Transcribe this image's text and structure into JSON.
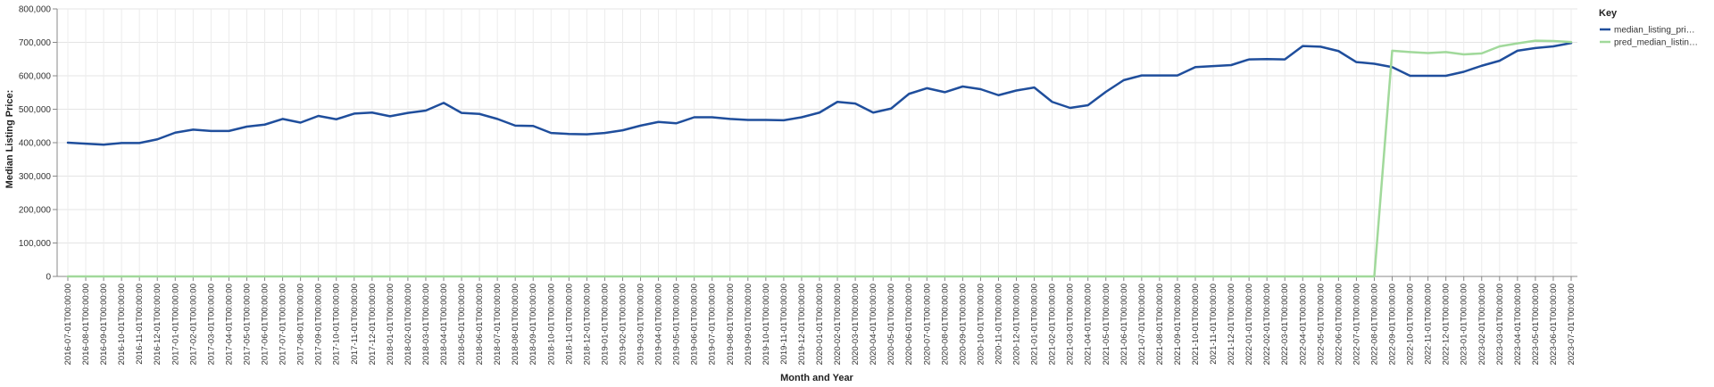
{
  "chart_data": {
    "type": "line",
    "xlabel": "Month and Year",
    "ylabel": "Median Listing Price:",
    "ylim": [
      0,
      800000
    ],
    "yticks": [
      "0",
      "100,000",
      "200,000",
      "300,000",
      "400,000",
      "500,000",
      "600,000",
      "700,000",
      "800,000"
    ],
    "grid": true,
    "legend_position": "top-right",
    "legend_title": "Key",
    "x": [
      "2016-07-01T00:00:00",
      "2016-08-01T00:00:00",
      "2016-09-01T00:00:00",
      "2016-10-01T00:00:00",
      "2016-11-01T00:00:00",
      "2016-12-01T00:00:00",
      "2017-01-01T00:00:00",
      "2017-02-01T00:00:00",
      "2017-03-01T00:00:00",
      "2017-04-01T00:00:00",
      "2017-05-01T00:00:00",
      "2017-06-01T00:00:00",
      "2017-07-01T00:00:00",
      "2017-08-01T00:00:00",
      "2017-09-01T00:00:00",
      "2017-10-01T00:00:00",
      "2017-11-01T00:00:00",
      "2017-12-01T00:00:00",
      "2018-01-01T00:00:00",
      "2018-02-01T00:00:00",
      "2018-03-01T00:00:00",
      "2018-04-01T00:00:00",
      "2018-05-01T00:00:00",
      "2018-06-01T00:00:00",
      "2018-07-01T00:00:00",
      "2018-08-01T00:00:00",
      "2018-09-01T00:00:00",
      "2018-10-01T00:00:00",
      "2018-11-01T00:00:00",
      "2018-12-01T00:00:00",
      "2019-01-01T00:00:00",
      "2019-02-01T00:00:00",
      "2019-03-01T00:00:00",
      "2019-04-01T00:00:00",
      "2019-05-01T00:00:00",
      "2019-06-01T00:00:00",
      "2019-07-01T00:00:00",
      "2019-08-01T00:00:00",
      "2019-09-01T00:00:00",
      "2019-10-01T00:00:00",
      "2019-11-01T00:00:00",
      "2019-12-01T00:00:00",
      "2020-01-01T00:00:00",
      "2020-02-01T00:00:00",
      "2020-03-01T00:00:00",
      "2020-04-01T00:00:00",
      "2020-05-01T00:00:00",
      "2020-06-01T00:00:00",
      "2020-07-01T00:00:00",
      "2020-08-01T00:00:00",
      "2020-09-01T00:00:00",
      "2020-10-01T00:00:00",
      "2020-11-01T00:00:00",
      "2020-12-01T00:00:00",
      "2021-01-01T00:00:00",
      "2021-02-01T00:00:00",
      "2021-03-01T00:00:00",
      "2021-04-01T00:00:00",
      "2021-05-01T00:00:00",
      "2021-06-01T00:00:00",
      "2021-07-01T00:00:00",
      "2021-08-01T00:00:00",
      "2021-09-01T00:00:00",
      "2021-10-01T00:00:00",
      "2021-11-01T00:00:00",
      "2021-12-01T00:00:00",
      "2022-01-01T00:00:00",
      "2022-02-01T00:00:00",
      "2022-03-01T00:00:00",
      "2022-04-01T00:00:00",
      "2022-05-01T00:00:00",
      "2022-06-01T00:00:00",
      "2022-07-01T00:00:00",
      "2022-08-01T00:00:00",
      "2022-09-01T00:00:00",
      "2022-10-01T00:00:00",
      "2022-11-01T00:00:00",
      "2022-12-01T00:00:00",
      "2023-01-01T00:00:00",
      "2023-02-01T00:00:00",
      "2023-03-01T00:00:00",
      "2023-04-01T00:00:00",
      "2023-05-01T00:00:00",
      "2023-06-01T00:00:00",
      "2023-07-01T00:00:00"
    ],
    "series": [
      {
        "name": "median_listing_pri…",
        "color": "#1f4e9c",
        "values": [
          400000,
          397000,
          394000,
          399000,
          399000,
          410000,
          430000,
          439000,
          435000,
          435000,
          448000,
          454000,
          471000,
          460000,
          480000,
          470000,
          487000,
          490000,
          479000,
          489000,
          496000,
          519000,
          489000,
          486000,
          471000,
          451000,
          450000,
          429000,
          426000,
          425000,
          429000,
          437000,
          451000,
          462000,
          458000,
          476000,
          476000,
          471000,
          468000,
          468000,
          467000,
          476000,
          490000,
          522000,
          517000,
          490000,
          502000,
          546000,
          563000,
          551000,
          568000,
          560000,
          542000,
          556000,
          565000,
          522000,
          504000,
          512000,
          552000,
          587000,
          601000,
          601000,
          601000,
          626000,
          629000,
          632000,
          649000,
          650000,
          649000,
          689000,
          687000,
          674000,
          641000,
          636000,
          626000,
          600000,
          600000,
          600000,
          612000,
          630000,
          645000,
          675000,
          683000,
          688000,
          698000
        ]
      },
      {
        "name": "pred_median_listin…",
        "color": "#a1d99b",
        "values": [
          0,
          0,
          0,
          0,
          0,
          0,
          0,
          0,
          0,
          0,
          0,
          0,
          0,
          0,
          0,
          0,
          0,
          0,
          0,
          0,
          0,
          0,
          0,
          0,
          0,
          0,
          0,
          0,
          0,
          0,
          0,
          0,
          0,
          0,
          0,
          0,
          0,
          0,
          0,
          0,
          0,
          0,
          0,
          0,
          0,
          0,
          0,
          0,
          0,
          0,
          0,
          0,
          0,
          0,
          0,
          0,
          0,
          0,
          0,
          0,
          0,
          0,
          0,
          0,
          0,
          0,
          0,
          0,
          0,
          0,
          0,
          0,
          0,
          0,
          675000,
          671000,
          668000,
          671000,
          664000,
          667000,
          688000,
          697000,
          705000,
          704000,
          701000
        ]
      }
    ]
  }
}
